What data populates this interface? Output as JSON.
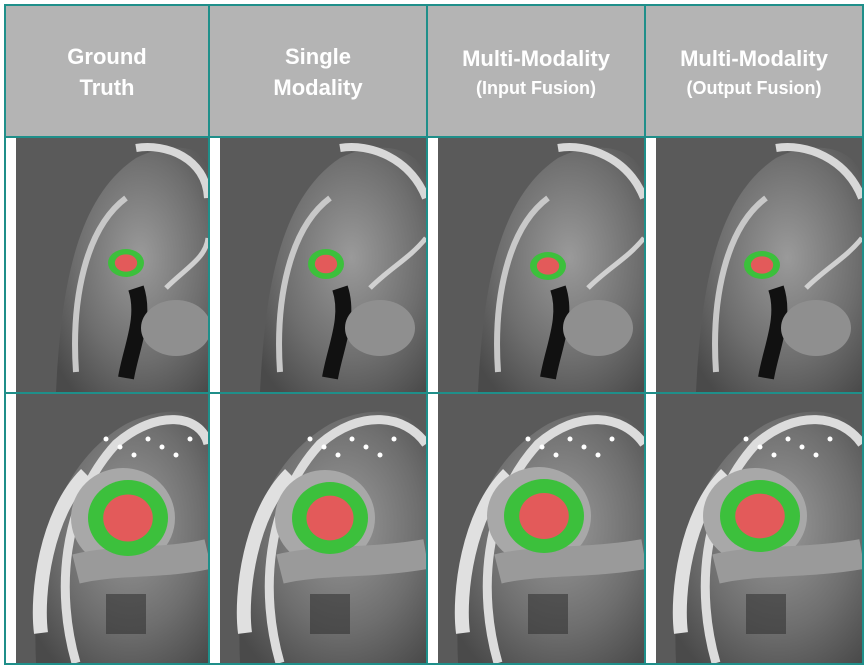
{
  "headers": [
    {
      "line1": "Ground",
      "line2": "Truth"
    },
    {
      "line1": "Single",
      "line2": "Modality"
    },
    {
      "line1": "Multi-Modality",
      "line2": "(Input Fusion)"
    },
    {
      "line1": "Multi-Modality",
      "line2": "(Output Fusion)"
    }
  ],
  "colors": {
    "border": "#1f8f8a",
    "header_bg": "#b4b4b4",
    "segmentation_inner": "#e35a5a",
    "segmentation_ring": "#3cc03c"
  },
  "rows": [
    {
      "name": "row-1",
      "cells": [
        "mri-slice",
        "mri-slice",
        "mri-slice",
        "mri-slice"
      ]
    },
    {
      "name": "row-2",
      "cells": [
        "mri-slice",
        "mri-slice",
        "mri-slice",
        "mri-slice"
      ]
    }
  ]
}
